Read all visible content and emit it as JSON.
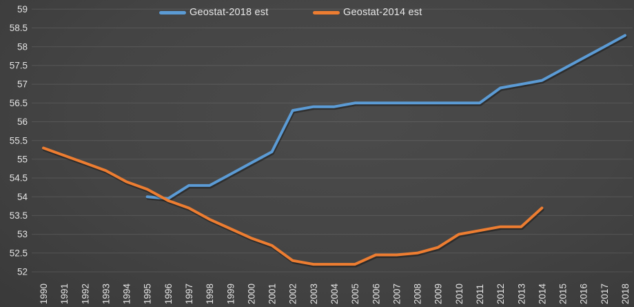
{
  "chart_data": {
    "type": "line",
    "title": "",
    "xlabel": "",
    "ylabel": "",
    "ylim": [
      52,
      59
    ],
    "yticks": [
      52,
      52.5,
      53,
      53.5,
      54,
      54.5,
      55,
      55.5,
      56,
      56.5,
      57,
      57.5,
      58,
      58.5,
      59
    ],
    "grid": "horizontal",
    "legend_position": "top",
    "categories": [
      "1990",
      "1991",
      "1992",
      "1993",
      "1994",
      "1995",
      "1996",
      "1997",
      "1998",
      "1999",
      "2000",
      "2001",
      "2002",
      "2003",
      "2004",
      "2005",
      "2006",
      "2007",
      "2008",
      "2009",
      "2010",
      "2011",
      "2012",
      "2013",
      "2014",
      "2015",
      "2016",
      "2017",
      "2018"
    ],
    "series": [
      {
        "name": "Geostat-2018 est",
        "color": "#5B9BD5",
        "values": [
          null,
          null,
          null,
          null,
          null,
          54.0,
          53.95,
          54.3,
          54.3,
          54.6,
          54.9,
          55.2,
          56.3,
          56.4,
          56.4,
          56.5,
          56.5,
          56.5,
          56.5,
          56.5,
          56.5,
          56.5,
          56.9,
          57.0,
          57.1,
          57.4,
          57.7,
          58.0,
          58.3
        ]
      },
      {
        "name": "Geostat-2014 est",
        "color": "#ED7D31",
        "values": [
          55.3,
          55.1,
          54.9,
          54.7,
          54.4,
          54.2,
          53.9,
          53.7,
          53.4,
          53.15,
          52.9,
          52.7,
          52.3,
          52.2,
          52.2,
          52.2,
          52.45,
          52.45,
          52.5,
          52.65,
          53.0,
          53.1,
          53.2,
          53.2,
          53.7,
          null,
          null,
          null,
          null
        ]
      }
    ]
  },
  "legend": {
    "item1": "Geostat-2018 est",
    "item2": "Geostat-2014 est"
  }
}
